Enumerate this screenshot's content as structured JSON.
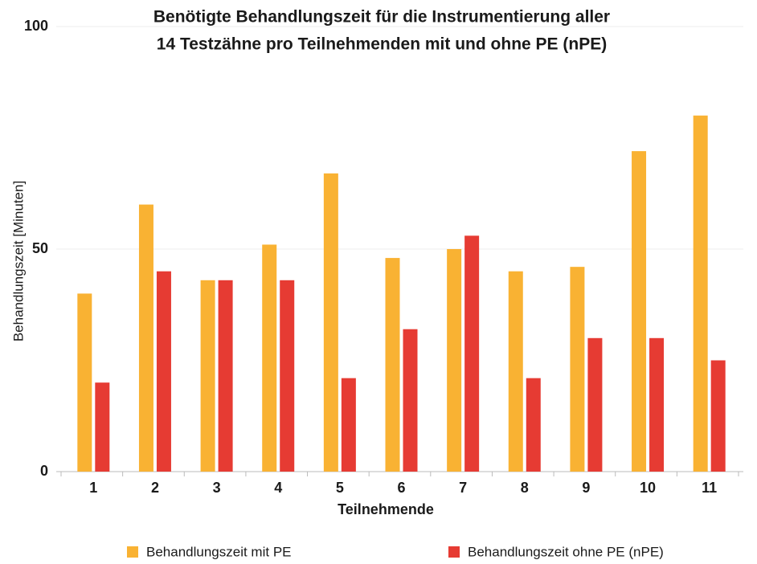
{
  "chart_data": {
    "type": "bar",
    "title": [
      "Benötigte Behandlungszeit für die Instrumentierung aller",
      "14 Testzähne pro Teilnehmenden mit und ohne PE (nPE)"
    ],
    "x_label": "Teilnehmende",
    "y_label": "Behandlungszeit  [Minuten]",
    "categories": [
      "1",
      "2",
      "3",
      "4",
      "5",
      "6",
      "7",
      "8",
      "9",
      "10",
      "11"
    ],
    "series": [
      {
        "name": "Behandlungszeit mit PE",
        "color": "#f9b233",
        "values": [
          40,
          60,
          43,
          51,
          67,
          48,
          50,
          45,
          46,
          72,
          80
        ]
      },
      {
        "name": "Behandlungszeit ohne PE (nPE)",
        "color": "#e63b33",
        "values": [
          20,
          45,
          43,
          43,
          21,
          32,
          53,
          21,
          30,
          30,
          25
        ]
      }
    ],
    "ylim": [
      0,
      100
    ],
    "yticks": [
      0,
      50,
      100
    ],
    "grid": true,
    "legend": "bottom"
  }
}
